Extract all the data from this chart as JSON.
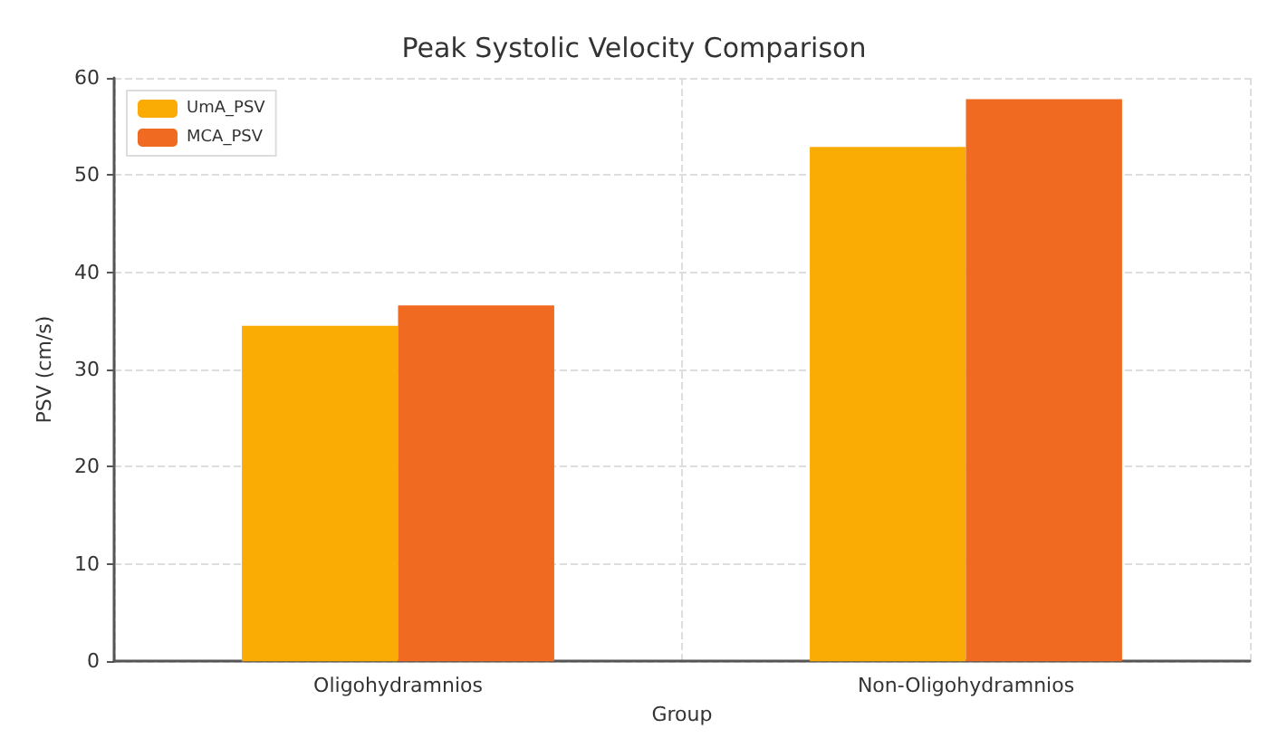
{
  "chart_data": {
    "type": "bar",
    "title": "Peak Systolic Velocity Comparison",
    "xlabel": "Group",
    "ylabel": "PSV (cm/s)",
    "categories": [
      "Oligohydramnios",
      "Non-Oligohydramnios"
    ],
    "series": [
      {
        "name": "UmA_PSV",
        "color": "#fbac04",
        "values": [
          34.5,
          52.9
        ]
      },
      {
        "name": "MCA_PSV",
        "color": "#f06a22",
        "values": [
          36.6,
          57.8
        ]
      }
    ],
    "ylim": [
      0,
      60
    ],
    "yticks": [
      0,
      10,
      20,
      30,
      40,
      50,
      60
    ],
    "grid": true,
    "legend": "top left"
  }
}
